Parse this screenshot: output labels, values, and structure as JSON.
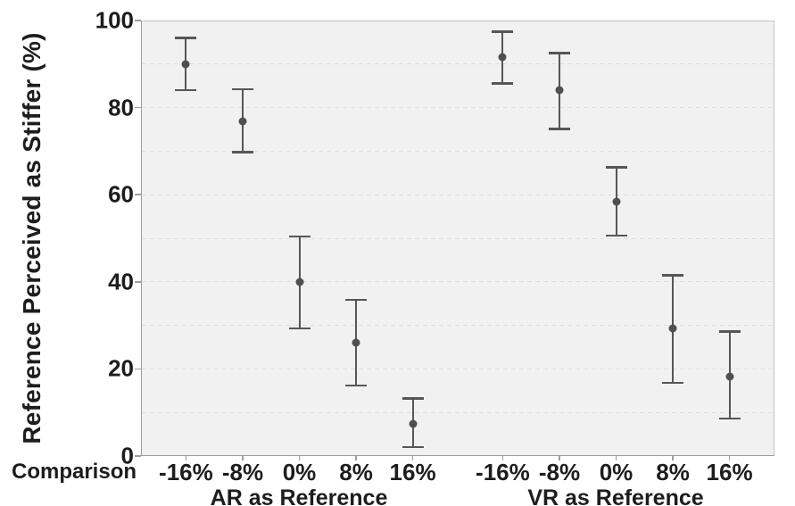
{
  "chart_data": {
    "type": "scatter",
    "title": "",
    "ylabel": "Reference Perceived as Stiffer (%)",
    "xlabel": "Comparison",
    "ylim": [
      0,
      100
    ],
    "yticks": [
      0,
      20,
      40,
      60,
      80,
      100
    ],
    "grid_step": 10,
    "grid_style": "dashed",
    "legend": "none",
    "note": "Point estimates with error bars (confidence intervals), two panels on one shared axis",
    "groups": [
      {
        "label": "AR as Reference",
        "categories": [
          "-16%",
          "-8%",
          "0%",
          "8%",
          "16%"
        ],
        "series": [
          {
            "name": "mean",
            "values": [
              90.0,
              76.8,
              39.9,
              26.0,
              7.4
            ]
          },
          {
            "name": "ci_low",
            "values": [
              84.0,
              69.8,
              29.3,
              16.2,
              2.0
            ]
          },
          {
            "name": "ci_high",
            "values": [
              96.0,
              84.2,
              50.4,
              35.9,
              13.2
            ]
          }
        ]
      },
      {
        "label": "VR as Reference",
        "categories": [
          "-16%",
          "-8%",
          "0%",
          "8%",
          "16%"
        ],
        "series": [
          {
            "name": "mean",
            "values": [
              91.5,
              84.0,
              58.3,
              29.4,
              18.3
            ]
          },
          {
            "name": "ci_low",
            "values": [
              85.6,
              75.1,
              50.6,
              16.8,
              8.6
            ]
          },
          {
            "name": "ci_high",
            "values": [
              97.4,
              92.5,
              66.3,
              41.5,
              28.6
            ]
          }
        ]
      }
    ],
    "colors": {
      "point": "#4f4f4f",
      "error_bar": "#565656",
      "plot_background": "#f1f1f1",
      "gridline": "#dedede",
      "axis": "#9e9e9e",
      "text": "#1d1d1d",
      "page_background": "#ffffff"
    }
  }
}
